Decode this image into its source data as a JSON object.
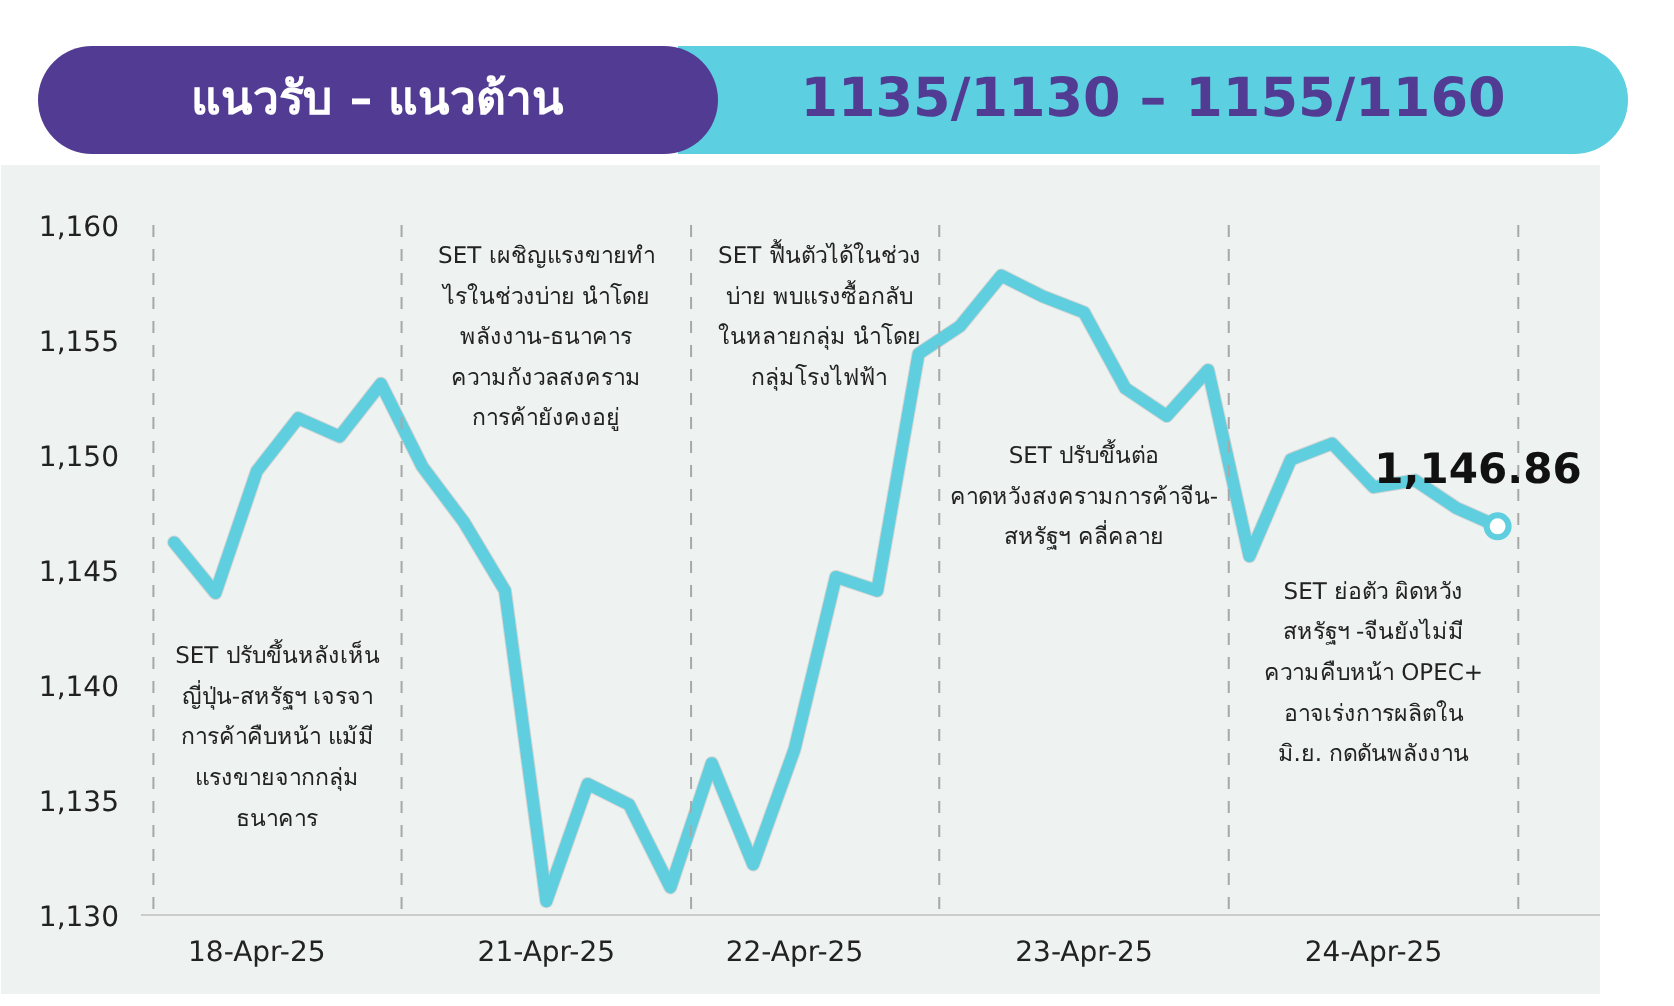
{
  "chart_data": {
    "type": "line",
    "title": "แนวรับ – แนวต้าน",
    "subtitle": "1135/1130 – 1155/1160",
    "categories": [
      null,
      null,
      "18-Apr-25",
      null,
      null,
      null,
      null,
      null,
      null,
      "21-Apr-25",
      null,
      null,
      null,
      null,
      null,
      "22-Apr-25",
      null,
      null,
      null,
      null,
      null,
      null,
      "23-Apr-25",
      null,
      null,
      null,
      null,
      null,
      null,
      "24-Apr-25",
      null,
      null,
      null
    ],
    "series": [
      {
        "color": "#5fcfdf",
        "values": [
          1146.2,
          1144.0,
          1149.3,
          1151.6,
          1150.8,
          1153.1,
          1149.5,
          1147.1,
          1144.1,
          1130.6,
          1135.7,
          1134.8,
          1131.2,
          1136.6,
          1132.2,
          1137.2,
          1144.7,
          1144.1,
          1154.4,
          1155.6,
          1157.8,
          1156.9,
          1156.2,
          1152.9,
          1151.7,
          1153.7,
          1145.6,
          1149.8,
          1150.5,
          1148.6,
          1148.9,
          1147.7,
          1146.9
        ]
      }
    ],
    "ylim": [
      1130,
      1160
    ],
    "yticks": [
      {
        "value": 1130,
        "label": "1,130"
      },
      {
        "value": 1135,
        "label": "1,135"
      },
      {
        "value": 1140,
        "label": "1,140"
      },
      {
        "value": 1145,
        "label": "1,145"
      },
      {
        "value": 1150,
        "label": "1,150"
      },
      {
        "value": 1155,
        "label": "1,155"
      },
      {
        "value": 1160,
        "label": "1,160"
      }
    ],
    "annotations": [
      "SET ปรับขึ้นหลังเห็น\nญี่ปุ่น-สหรัฐฯ เจรจา\nการค้าคืบหน้า แม้มี\nแรงขายจากกลุ่ม\nธนาคาร",
      "SET เผชิญแรงขายทำ\nไรในช่วงบ่าย นำโดย\nพลังงาน-ธนาคาร\nความกังวลสงคราม\nการค้ายังคงอยู่",
      "SET ฟื้นตัวได้ในช่วง\nบ่าย พบแรงซื้อกลับ\nในหลายกลุ่ม นำโดย\nกลุ่มโรงไฟฟ้า",
      "SET ปรับขึ้นต่อ\nคาดหวังสงครามการค้าจีน-\nสหรัฐฯ คลี่คลาย",
      "SET ย่อตัว ผิดหวัง\nสหรัฐฯ -จีนยังไม่มี\nความคืบหน้า OPEC+\nอาจเร่งการผลิตใน\nมิ.ย. กดดันพลังงาน",
      {
        "text": "1,146.86",
        "y": 1146.9
      }
    ],
    "grid": false,
    "marker": "none",
    "line_style": "solid"
  }
}
